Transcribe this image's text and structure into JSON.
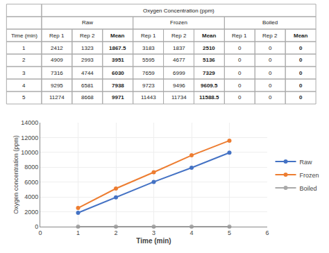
{
  "chart_data": [
    {
      "type": "table",
      "title": "Oxygen Concentration (ppm)",
      "first_column": "Time (min)",
      "groups": [
        {
          "name": "Raw",
          "columns": [
            "Rep 1",
            "Rep 2",
            "Mean"
          ]
        },
        {
          "name": "Frozen",
          "columns": [
            "Rep 1",
            "Rep 2",
            "Mean"
          ]
        },
        {
          "name": "Boiled",
          "columns": [
            "Rep 1",
            "Rep 2",
            "Mean"
          ]
        }
      ],
      "rows": [
        [
          1,
          2412,
          1323,
          1867.5,
          3183,
          1837,
          2510,
          0,
          0,
          0
        ],
        [
          2,
          4909,
          2993,
          3951,
          5595,
          4677,
          5136,
          0,
          0,
          0
        ],
        [
          3,
          7316,
          4744,
          6030,
          7659,
          6999,
          7329,
          0,
          0,
          0
        ],
        [
          4,
          9295,
          6581,
          7938,
          9723,
          9496,
          9609.5,
          0,
          0,
          0
        ],
        [
          5,
          11274,
          8668,
          9971,
          11443,
          11734,
          11588.5,
          0,
          0,
          0
        ]
      ]
    },
    {
      "type": "line",
      "x": [
        1,
        2,
        3,
        4,
        5
      ],
      "series": [
        {
          "name": "Raw",
          "color": "#4472C4",
          "values": [
            1867.5,
            3951,
            6030,
            7938,
            9971
          ]
        },
        {
          "name": "Frozen",
          "color": "#ED7D31",
          "values": [
            2510,
            5136,
            7329,
            9609.5,
            11588.5
          ]
        },
        {
          "name": "Boiled",
          "color": "#A9A9A9",
          "values": [
            0,
            0,
            0,
            0,
            0
          ]
        }
      ],
      "xlabel": "Time (min)",
      "ylabel": "Oxygen concentration (ppm)",
      "xlim": [
        0,
        6
      ],
      "ylim": [
        0,
        14000
      ],
      "xticks": [
        0,
        1,
        2,
        3,
        4,
        5,
        6
      ],
      "yticks": [
        0,
        2000,
        4000,
        6000,
        8000,
        10000,
        12000,
        14000
      ],
      "grid": true,
      "legend": "right",
      "marker": "circle"
    }
  ]
}
